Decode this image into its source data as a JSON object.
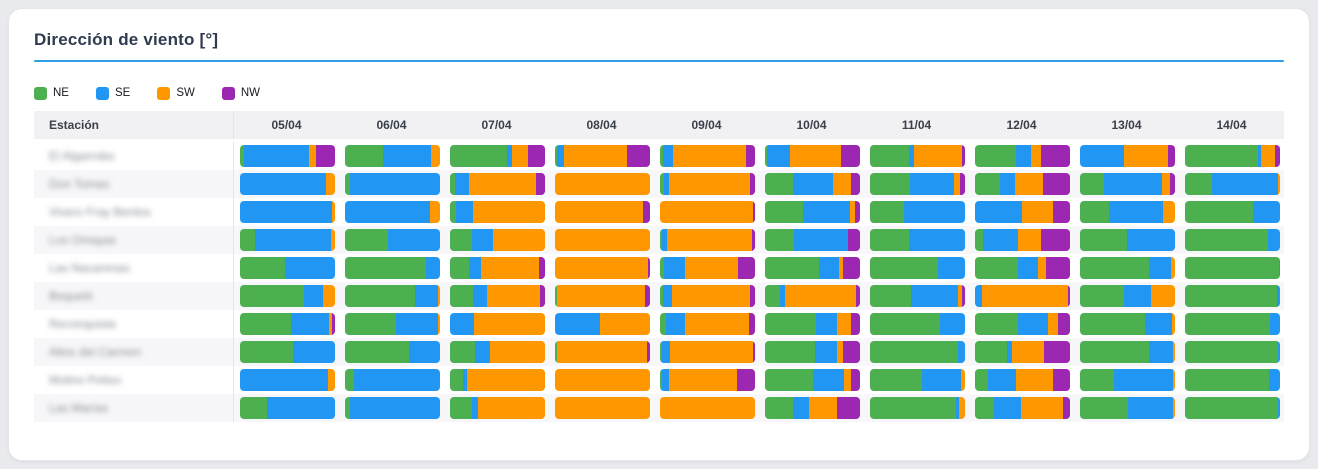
{
  "page": {
    "background": "#e9eaee"
  },
  "card": {
    "title": "Dirección de viento [°]",
    "divider_color": "#2f9fe5"
  },
  "table": {
    "station_header": "Estación",
    "station_names_blurred": true
  },
  "chart_data": {
    "type": "bar",
    "orientation": "horizontal",
    "stacking": "percent",
    "title": "Dirección de viento [°]",
    "legend_position": "top-left",
    "grid": false,
    "series_names": [
      "NE",
      "SE",
      "SW",
      "NW"
    ],
    "series_colors": {
      "NE": "#4caf50",
      "SE": "#2196f3",
      "SW": "#ff9800",
      "NW": "#9c27b0"
    },
    "columns": [
      "05/04",
      "06/04",
      "07/04",
      "08/04",
      "09/04",
      "10/04",
      "11/04",
      "12/04",
      "13/04",
      "14/04"
    ],
    "value_unit": "percent_of_bar",
    "rows": [
      {
        "station": "El Algarrobo",
        "values": [
          [
            4,
            69,
            7,
            20
          ],
          [
            40,
            51,
            9,
            0
          ],
          [
            60,
            5,
            17,
            18
          ],
          [
            2,
            8,
            66,
            24
          ],
          [
            3,
            11,
            77,
            9
          ],
          [
            2,
            24,
            54,
            20
          ],
          [
            41,
            5,
            51,
            3
          ],
          [
            43,
            16,
            10,
            31
          ],
          [
            0,
            46,
            47,
            7
          ],
          [
            77,
            3,
            15,
            5
          ]
        ]
      },
      {
        "station": "Don Tomas",
        "values": [
          [
            0,
            90,
            10,
            0
          ],
          [
            5,
            95,
            0,
            0
          ],
          [
            5,
            15,
            70,
            10
          ],
          [
            0,
            0,
            100,
            0
          ],
          [
            4,
            6,
            85,
            5
          ],
          [
            29,
            43,
            19,
            9
          ],
          [
            42,
            46,
            7,
            5
          ],
          [
            26,
            16,
            30,
            28
          ],
          [
            25,
            61,
            9,
            5
          ],
          [
            28,
            70,
            2,
            0
          ]
        ]
      },
      {
        "station": "Vivero Fray Bentos",
        "values": [
          [
            0,
            97,
            3,
            0
          ],
          [
            0,
            89,
            11,
            0
          ],
          [
            6,
            18,
            76,
            0
          ],
          [
            0,
            0,
            93,
            7
          ],
          [
            0,
            0,
            98,
            2
          ],
          [
            40,
            49,
            6,
            5
          ],
          [
            36,
            64,
            0,
            0
          ],
          [
            0,
            49,
            33,
            18
          ],
          [
            30,
            57,
            13,
            0
          ],
          [
            72,
            28,
            0,
            0
          ]
        ]
      },
      {
        "station": "Los Omayas",
        "values": [
          [
            16,
            80,
            4,
            0
          ],
          [
            45,
            55,
            0,
            0
          ],
          [
            23,
            22,
            55,
            0
          ],
          [
            0,
            0,
            100,
            0
          ],
          [
            2,
            5,
            90,
            3
          ],
          [
            31,
            56,
            0,
            13
          ],
          [
            41,
            59,
            0,
            0
          ],
          [
            8,
            37,
            25,
            30
          ],
          [
            49,
            51,
            0,
            0
          ],
          [
            87,
            13,
            0,
            0
          ]
        ]
      },
      {
        "station": "Las Nacarenas",
        "values": [
          [
            47,
            53,
            0,
            0
          ],
          [
            85,
            15,
            0,
            0
          ],
          [
            20,
            13,
            61,
            6
          ],
          [
            0,
            0,
            98,
            2
          ],
          [
            4,
            22,
            56,
            18
          ],
          [
            57,
            21,
            4,
            18
          ],
          [
            72,
            28,
            0,
            0
          ],
          [
            45,
            21,
            9,
            25
          ],
          [
            73,
            23,
            4,
            0
          ],
          [
            99,
            1,
            0,
            0
          ]
        ]
      },
      {
        "station": "Bequeló",
        "values": [
          [
            67,
            20,
            13,
            0
          ],
          [
            74,
            24,
            2,
            0
          ],
          [
            24,
            15,
            56,
            5
          ],
          [
            2,
            0,
            93,
            5
          ],
          [
            3,
            10,
            82,
            5
          ],
          [
            16,
            5,
            75,
            4
          ],
          [
            43,
            50,
            4,
            3
          ],
          [
            0,
            7,
            91,
            2
          ],
          [
            46,
            29,
            25,
            0
          ],
          [
            97,
            3,
            0,
            0
          ]
        ]
      },
      {
        "station": "Reconquista",
        "values": [
          [
            54,
            40,
            3,
            3
          ],
          [
            54,
            44,
            2,
            0
          ],
          [
            0,
            25,
            75,
            0
          ],
          [
            0,
            47,
            53,
            0
          ],
          [
            6,
            20,
            68,
            6
          ],
          [
            54,
            22,
            15,
            9
          ],
          [
            74,
            26,
            0,
            0
          ],
          [
            45,
            32,
            10,
            13
          ],
          [
            68,
            29,
            3,
            0
          ],
          [
            89,
            11,
            0,
            0
          ]
        ]
      },
      {
        "station": "Altos del Carmen",
        "values": [
          [
            56,
            44,
            0,
            0
          ],
          [
            67,
            33,
            0,
            0
          ],
          [
            26,
            16,
            58,
            0
          ],
          [
            2,
            0,
            95,
            3
          ],
          [
            2,
            9,
            87,
            2
          ],
          [
            53,
            23,
            6,
            18
          ],
          [
            93,
            7,
            0,
            0
          ],
          [
            34,
            5,
            34,
            27
          ],
          [
            73,
            25,
            2,
            0
          ],
          [
            98,
            2,
            0,
            0
          ]
        ]
      },
      {
        "station": "Molino Petiso",
        "values": [
          [
            0,
            93,
            7,
            0
          ],
          [
            9,
            91,
            0,
            0
          ],
          [
            14,
            4,
            82,
            0
          ],
          [
            0,
            0,
            100,
            0
          ],
          [
            2,
            7,
            72,
            19
          ],
          [
            50,
            33,
            8,
            9
          ],
          [
            55,
            41,
            4,
            0
          ],
          [
            14,
            29,
            39,
            18
          ],
          [
            36,
            62,
            2,
            0
          ],
          [
            88,
            12,
            0,
            0
          ]
        ]
      },
      {
        "station": "Las Marías",
        "values": [
          [
            28,
            72,
            0,
            0
          ],
          [
            5,
            95,
            0,
            0
          ],
          [
            23,
            7,
            70,
            0
          ],
          [
            0,
            0,
            100,
            0
          ],
          [
            0,
            0,
            100,
            0
          ],
          [
            29,
            17,
            30,
            24
          ],
          [
            90,
            4,
            6,
            0
          ],
          [
            20,
            28,
            45,
            7
          ],
          [
            50,
            48,
            2,
            0
          ],
          [
            98,
            2,
            0,
            0
          ]
        ]
      }
    ]
  }
}
